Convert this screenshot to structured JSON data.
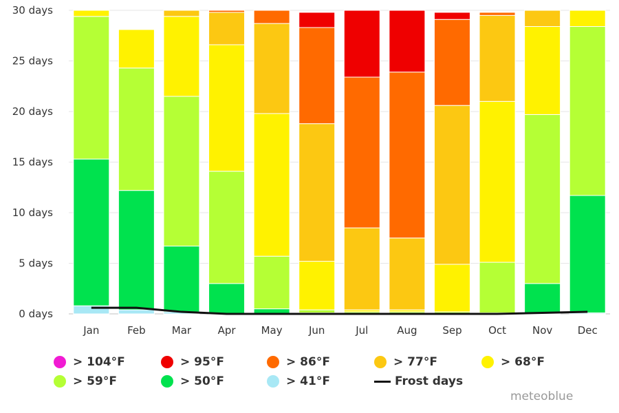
{
  "chart_data": {
    "type": "stacked-bar",
    "categories": [
      "Jan",
      "Feb",
      "Mar",
      "Apr",
      "May",
      "Jun",
      "Jul",
      "Aug",
      "Sep",
      "Oct",
      "Nov",
      "Dec"
    ],
    "y_tick_labels": [
      "0 days",
      "5 days",
      "10 days",
      "15 days",
      "20 days",
      "25 days",
      "30 days"
    ],
    "ylim": [
      0,
      30
    ],
    "series": [
      {
        "name": "> 41°F",
        "color": "#a8e8f5",
        "values": [
          0.8,
          0.4,
          0.2,
          0.0,
          0.0,
          0.0,
          0.0,
          0.0,
          0.0,
          0.0,
          0.1,
          0.1
        ]
      },
      {
        "name": "> 50°F",
        "color": "#00e24e",
        "values": [
          14.5,
          11.8,
          6.5,
          3.0,
          0.5,
          0.1,
          0.0,
          0.0,
          0.0,
          0.1,
          2.9,
          11.6
        ]
      },
      {
        "name": "> 59°F",
        "color": "#b5ff35",
        "values": [
          14.1,
          12.1,
          14.8,
          11.1,
          5.2,
          0.3,
          0.2,
          0.2,
          0.2,
          5.0,
          16.7,
          16.7
        ]
      },
      {
        "name": "> 68°F",
        "color": "#fff200",
        "values": [
          0.6,
          3.8,
          7.9,
          12.5,
          14.1,
          4.8,
          0.2,
          0.2,
          4.7,
          15.9,
          8.7,
          1.6
        ]
      },
      {
        "name": "> 77°F",
        "color": "#fcc812",
        "values": [
          0.0,
          0.0,
          0.6,
          3.2,
          8.9,
          13.6,
          8.1,
          7.1,
          15.7,
          8.5,
          1.6,
          0.0
        ]
      },
      {
        "name": "> 86°F",
        "color": "#ff6a00",
        "values": [
          0.0,
          0.0,
          0.0,
          0.2,
          1.3,
          9.5,
          14.9,
          16.4,
          8.5,
          0.3,
          0.0,
          0.0
        ]
      },
      {
        "name": "> 95°F",
        "color": "#ef0000",
        "values": [
          0.0,
          0.0,
          0.0,
          0.0,
          0.0,
          1.5,
          6.6,
          6.1,
          0.7,
          0.0,
          0.0,
          0.0
        ]
      },
      {
        "name": "> 104°F",
        "color": "#f11bd3",
        "values": [
          0,
          0,
          0,
          0,
          0,
          0,
          0,
          0,
          0,
          0,
          0,
          0
        ]
      }
    ],
    "frost_days": {
      "name": "Frost days",
      "color": "#111111",
      "values": [
        0.6,
        0.6,
        0.2,
        0.0,
        0.0,
        0.0,
        0.0,
        0.0,
        0.0,
        0.0,
        0.1,
        0.2
      ]
    },
    "grid": true
  },
  "legend": {
    "row1": [
      {
        "label": "> 104°F",
        "color": "#f11bd3"
      },
      {
        "label": "> 95°F",
        "color": "#ef0000"
      },
      {
        "label": "> 86°F",
        "color": "#ff6a00"
      },
      {
        "label": "> 77°F",
        "color": "#fcc812"
      },
      {
        "label": "> 68°F",
        "color": "#fff200"
      }
    ],
    "row2": [
      {
        "label": "> 59°F",
        "color": "#b5ff35"
      },
      {
        "label": "> 50°F",
        "color": "#00e24e"
      },
      {
        "label": "> 41°F",
        "color": "#a8e8f5"
      },
      {
        "label": "Frost days",
        "color": "#111111"
      }
    ]
  },
  "credit": "meteoblue"
}
